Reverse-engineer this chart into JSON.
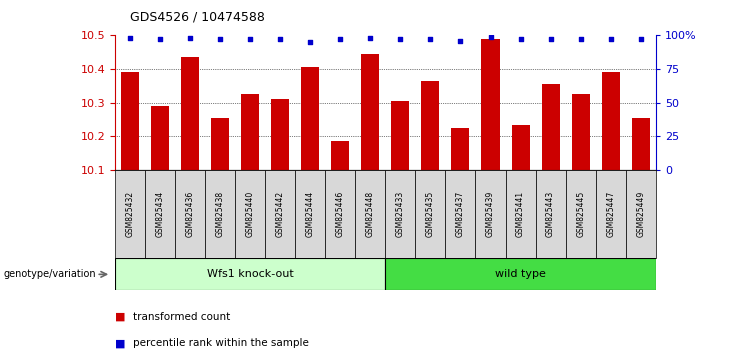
{
  "title": "GDS4526 / 10474588",
  "categories": [
    "GSM825432",
    "GSM825434",
    "GSM825436",
    "GSM825438",
    "GSM825440",
    "GSM825442",
    "GSM825444",
    "GSM825446",
    "GSM825448",
    "GSM825433",
    "GSM825435",
    "GSM825437",
    "GSM825439",
    "GSM825441",
    "GSM825443",
    "GSM825445",
    "GSM825447",
    "GSM825449"
  ],
  "bar_values": [
    10.39,
    10.29,
    10.435,
    10.255,
    10.325,
    10.31,
    10.405,
    10.185,
    10.445,
    10.305,
    10.365,
    10.225,
    10.49,
    10.235,
    10.355,
    10.325,
    10.39,
    10.255
  ],
  "percentile_values": [
    98,
    97,
    98,
    97,
    97,
    97,
    95,
    97,
    98,
    97,
    97,
    96,
    99,
    97,
    97,
    97,
    97,
    97
  ],
  "group_labels": [
    "Wfs1 knock-out",
    "wild type"
  ],
  "group_split": 9,
  "group_color1": "#ccffcc",
  "group_color2": "#44dd44",
  "bar_color": "#cc0000",
  "dot_color": "#0000cc",
  "ylim": [
    10.1,
    10.5
  ],
  "y2lim": [
    0,
    100
  ],
  "ylabel_color": "#cc0000",
  "y2label_color": "#0000cc",
  "yticks": [
    10.1,
    10.2,
    10.3,
    10.4,
    10.5
  ],
  "y2ticks": [
    0,
    25,
    50,
    75,
    100
  ],
  "y2ticklabels": [
    "0",
    "25",
    "50",
    "75",
    "100%"
  ],
  "grid_color": "#000000",
  "xtick_bg": "#d8d8d8",
  "legend": [
    {
      "color": "#cc0000",
      "label": "transformed count"
    },
    {
      "color": "#0000cc",
      "label": "percentile rank within the sample"
    }
  ]
}
